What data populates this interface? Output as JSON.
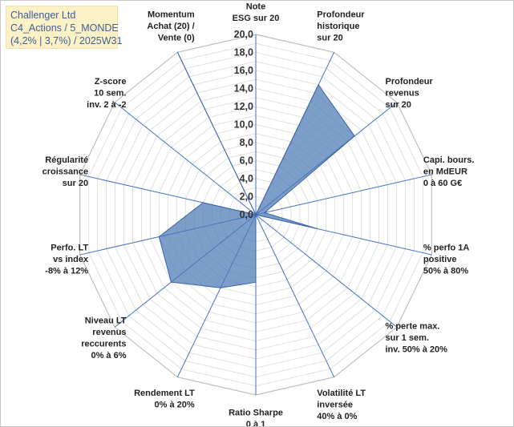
{
  "title_box": {
    "line1": "Challenger Ltd",
    "line2": "C4_Actions / 5_MONDE",
    "line3": "(4,2% | 3,7%) / 2025W31"
  },
  "chart_data": {
    "type": "radar",
    "rmin": 0,
    "rmax": 20,
    "tick_step": 2,
    "minor_step": 1,
    "ticks": [
      "0,0",
      "2,0",
      "4,0",
      "6,0",
      "8,0",
      "10,0",
      "12,0",
      "14,0",
      "16,0",
      "18,0",
      "20,0"
    ],
    "axes": [
      {
        "label": [
          "Note",
          "ESG sur 20"
        ]
      },
      {
        "label": [
          "Profondeur",
          "historique",
          "sur 20"
        ]
      },
      {
        "label": [
          "Profondeur",
          "revenus",
          "sur 20"
        ]
      },
      {
        "label": [
          "Capi. bours.",
          "en MdEUR",
          "0 à 60 G€"
        ]
      },
      {
        "label": [
          "% perfo 1A",
          "positive",
          "50% à 80%"
        ]
      },
      {
        "label": [
          "% perte max.",
          "sur 1 sem.",
          "inv. 50% à 20%"
        ]
      },
      {
        "label": [
          "Volatilité LT",
          "inversée",
          "40% à 0%"
        ]
      },
      {
        "label": [
          "Ratio Sharpe",
          "0 à 1"
        ]
      },
      {
        "label": [
          "Rendement LT",
          "0% à 20%"
        ]
      },
      {
        "label": [
          "Niveau LT",
          "revenus",
          "reccurents",
          "0% à 6%"
        ]
      },
      {
        "label": [
          "Perfo. LT",
          "vs index",
          "-8% à 12%"
        ]
      },
      {
        "label": [
          "Régularité",
          "croissance",
          "sur 20"
        ]
      },
      {
        "label": [
          "Z-score",
          "10 sem.",
          "inv. 2 à -2"
        ]
      },
      {
        "label": [
          "Momentum",
          "Achat (20) /",
          "Vente (0)"
        ]
      }
    ],
    "series": [
      {
        "values": [
          0,
          16,
          14,
          1,
          7,
          0,
          0,
          7.5,
          9,
          12,
          11,
          6,
          0,
          20
        ],
        "fill": "#4a78b4",
        "fill_opacity": 0.72,
        "stroke": "#3a65a8"
      }
    ],
    "grid_color": "#d9d9d9",
    "axis_color": "#4472c4",
    "outer_color": "#bfbfbf"
  }
}
